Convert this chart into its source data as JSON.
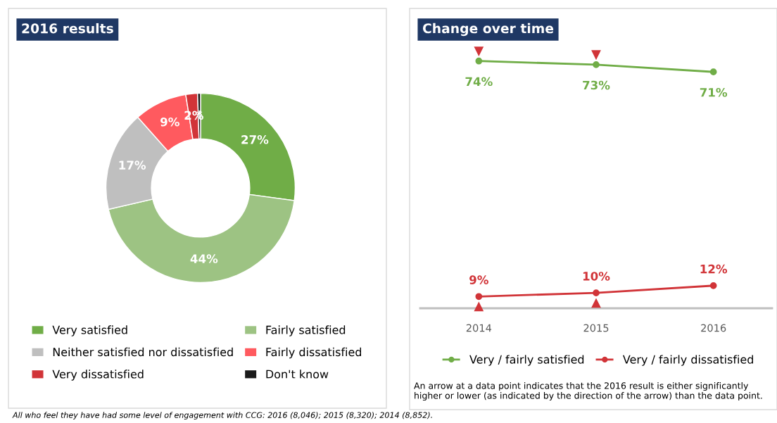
{
  "chart_data": [
    {
      "type": "donut",
      "title": "2016 results",
      "categories": [
        "Very satisfied",
        "Fairly satisfied",
        "Neither satisfied nor dissatisfied",
        "Fairly dissatisfied",
        "Very dissatisfied",
        "Don't know"
      ],
      "values": [
        27,
        44,
        17,
        9,
        2,
        0.5
      ],
      "value_labels": [
        "27%",
        "44%",
        "17%",
        "9%",
        "2%",
        "*"
      ],
      "colors": [
        "#70ad47",
        "#9dc383",
        "#bfbfbf",
        "#ff5a5f",
        "#d13438",
        "#1a1a1a"
      ],
      "legend": "bottom",
      "annotations": [
        "All who feel they have had some level of engagement with CCG: 2016 (8,046); 2015 (8,320); 2014 (8,852)."
      ]
    },
    {
      "type": "line",
      "title": "Change over time",
      "categories": [
        "2014",
        "2015",
        "2016"
      ],
      "series": [
        {
          "name": "Very / fairly satisfied",
          "color": "#70ad47",
          "values": [
            74,
            73,
            71
          ],
          "value_labels": [
            "74%",
            "73%",
            "71%"
          ]
        },
        {
          "name": "Very / fairly dissatisfied",
          "color": "#d13438",
          "values": [
            9,
            10,
            12
          ],
          "value_labels": [
            "9%",
            "10%",
            "12%"
          ]
        }
      ],
      "marker": "circle",
      "legend": "bottom",
      "tick_labels": "x",
      "annotations": [
        {
          "text": "▼",
          "x": "2014",
          "y": 74
        },
        {
          "text": "▼",
          "x": "2015",
          "y": 73
        },
        {
          "text": "▲",
          "x": "2014",
          "y": 9
        },
        {
          "text": "▲",
          "x": "2015",
          "y": 10
        },
        "An arrow at a data point indicates that the 2016 result is either significantly higher or lower (as indicated by the direction of the arrow) than the data point."
      ]
    }
  ]
}
